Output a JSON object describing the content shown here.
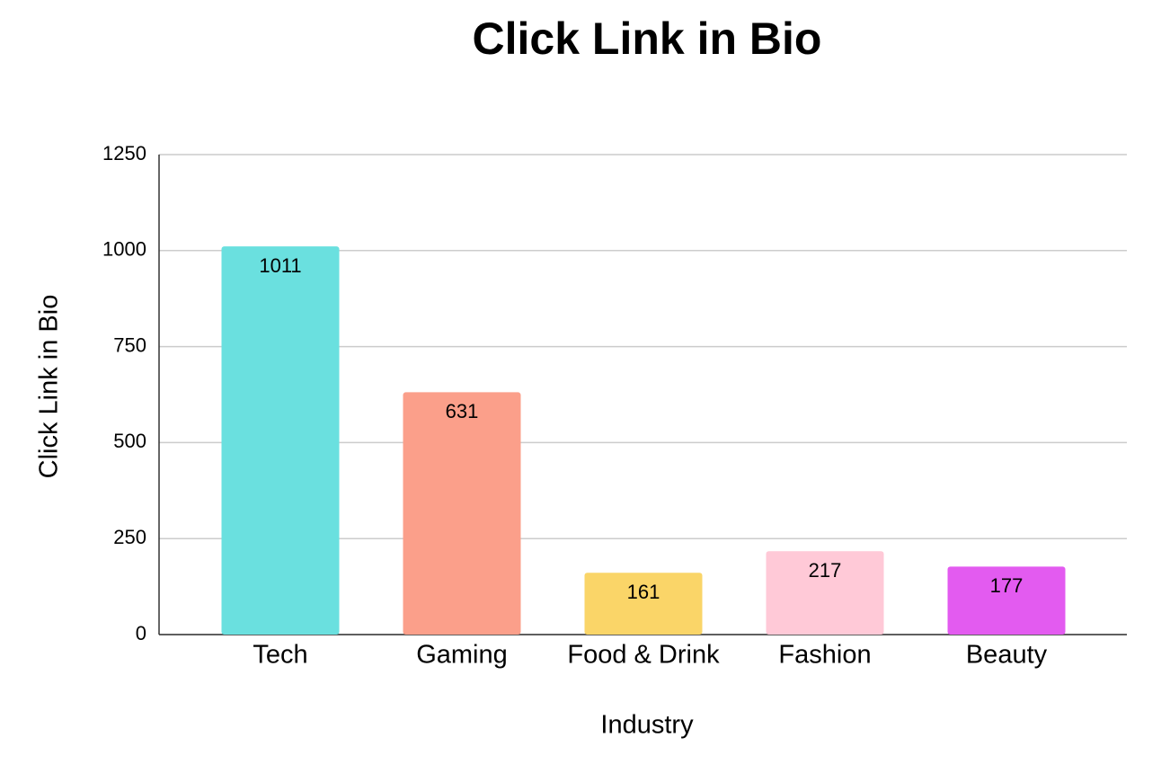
{
  "chart_data": {
    "type": "bar",
    "title": "Click Link in Bio",
    "x_label": "Industry",
    "y_label": "Click Link in Bio",
    "categories": [
      "Tech",
      "Gaming",
      "Food & Drink",
      "Fashion",
      "Beauty"
    ],
    "values": [
      1011,
      631,
      161,
      217,
      177
    ],
    "colors": [
      "#6ae0df",
      "#fb9f8a",
      "#fad568",
      "#ffc9d7",
      "#e35bf0"
    ],
    "ylim": [
      0,
      1250
    ],
    "yticks": [
      0,
      250,
      500,
      750,
      1000,
      1250
    ],
    "grid": true
  }
}
